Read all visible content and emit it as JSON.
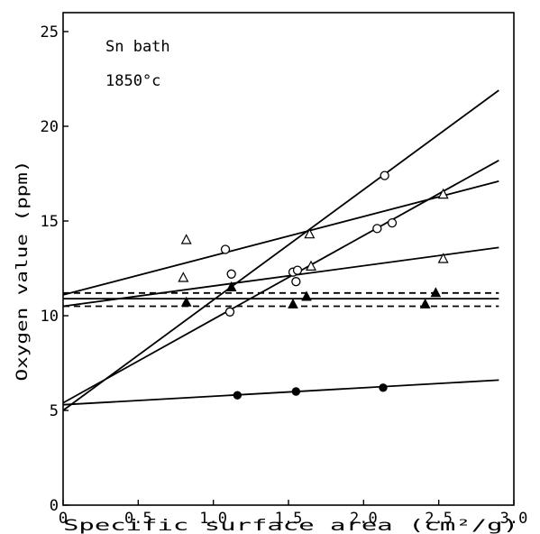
{
  "chart_data": {
    "type": "scatter",
    "title": "",
    "xlabel": "Specific surface area (cm²/g)",
    "ylabel": "Oxygen value  (ppm)",
    "xlim": [
      0,
      3.0
    ],
    "ylim": [
      0,
      26
    ],
    "xticks": [
      0,
      0.5,
      1.0,
      1.5,
      2.0,
      2.5,
      3.0
    ],
    "xtick_labels": [
      "0",
      "0.5",
      "1.0",
      "1.5",
      "2.0",
      "2.5",
      "3.0"
    ],
    "yticks": [
      0,
      5,
      10,
      15,
      20,
      25
    ],
    "ytick_labels": [
      "0",
      "5",
      "10",
      "15",
      "20",
      "25"
    ],
    "annotations": [
      "Sn bath",
      "1850°c"
    ],
    "grid": false,
    "series": [
      {
        "marker": "open-circle",
        "points": [
          [
            1.08,
            13.5
          ],
          [
            1.12,
            12.2
          ],
          [
            1.11,
            10.2
          ],
          [
            1.53,
            12.3
          ],
          [
            1.56,
            12.4
          ],
          [
            1.55,
            11.8
          ],
          [
            2.09,
            14.6
          ],
          [
            2.19,
            14.9
          ],
          [
            2.14,
            17.4
          ]
        ],
        "fit_lines": [
          {
            "x": [
              0,
              2.9
            ],
            "y": [
              5.0,
              21.9
            ],
            "style": "solid"
          },
          {
            "x": [
              0,
              2.9
            ],
            "y": [
              5.4,
              18.2
            ],
            "style": "solid"
          }
        ]
      },
      {
        "marker": "open-triangle",
        "points": [
          [
            0.82,
            14.0
          ],
          [
            0.8,
            12.0
          ],
          [
            1.64,
            14.3
          ],
          [
            1.65,
            12.6
          ],
          [
            2.53,
            16.4
          ],
          [
            2.53,
            13.0
          ]
        ],
        "fit_lines": [
          {
            "x": [
              0,
              2.9
            ],
            "y": [
              11.1,
              17.1
            ],
            "style": "solid"
          },
          {
            "x": [
              0,
              2.9
            ],
            "y": [
              10.5,
              13.6
            ],
            "style": "solid"
          }
        ]
      },
      {
        "marker": "filled-triangle",
        "points": [
          [
            0.82,
            10.7
          ],
          [
            1.12,
            11.5
          ],
          [
            1.53,
            10.6
          ],
          [
            1.62,
            11.0
          ],
          [
            2.41,
            10.6
          ],
          [
            2.48,
            11.2
          ]
        ],
        "fit_lines": [
          {
            "x": [
              0,
              2.9
            ],
            "y": [
              10.9,
              10.9
            ],
            "style": "solid"
          },
          {
            "x": [
              0,
              2.9
            ],
            "y": [
              11.2,
              11.2
            ],
            "style": "dashed"
          },
          {
            "x": [
              0,
              2.9
            ],
            "y": [
              10.5,
              10.5
            ],
            "style": "dashed"
          }
        ]
      },
      {
        "marker": "filled-circle",
        "points": [
          [
            1.16,
            5.8
          ],
          [
            1.55,
            6.0
          ],
          [
            2.13,
            6.2
          ]
        ],
        "fit_lines": [
          {
            "x": [
              0,
              2.9
            ],
            "y": [
              5.3,
              6.6
            ],
            "style": "solid"
          }
        ]
      }
    ]
  }
}
